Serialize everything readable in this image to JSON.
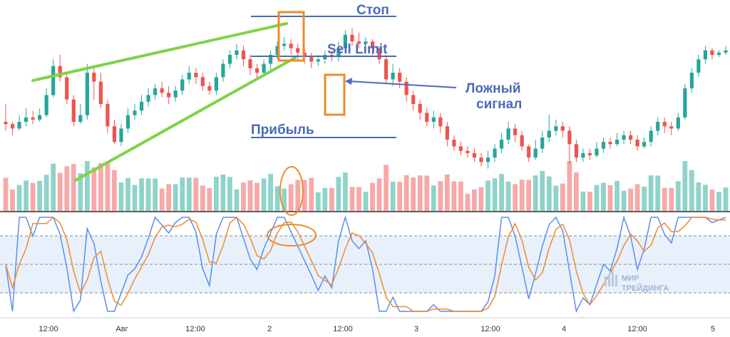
{
  "chart_data": {
    "type": "candlestick",
    "panels": [
      "price",
      "volume",
      "stochastic"
    ],
    "annotations": {
      "stop_label": "Стоп",
      "sell_limit_label": "Sell Limit",
      "false_signal_label_line1": "Ложный",
      "false_signal_label_line2": "сигнал",
      "profit_label": "Прибыль"
    },
    "x_tick_labels": [
      "12:00",
      "Авг",
      "12:00",
      "2",
      "12:00",
      "3",
      "12:00",
      "4",
      "12:00",
      "5"
    ],
    "watermark": {
      "line1": "МИР",
      "line2": "ТРЕЙДИНГА"
    },
    "candles_approx": [
      [
        230,
        229,
        238,
        226
      ],
      [
        229,
        227,
        230,
        224
      ],
      [
        227,
        230,
        233,
        226
      ],
      [
        230,
        232,
        236,
        228
      ],
      [
        232,
        231,
        235,
        229
      ],
      [
        231,
        233,
        236,
        230
      ],
      [
        233,
        242,
        245,
        232
      ],
      [
        242,
        255,
        258,
        241
      ],
      [
        255,
        250,
        260,
        248
      ],
      [
        250,
        240,
        252,
        238
      ],
      [
        240,
        230,
        242,
        228
      ],
      [
        230,
        233,
        238,
        229
      ],
      [
        233,
        252,
        256,
        231
      ],
      [
        252,
        248,
        255,
        240
      ],
      [
        248,
        238,
        252,
        236
      ],
      [
        238,
        228,
        240,
        225
      ],
      [
        228,
        221,
        231,
        220
      ],
      [
        221,
        227,
        229,
        219
      ],
      [
        227,
        233,
        236,
        225
      ],
      [
        233,
        235,
        238,
        231
      ],
      [
        235,
        239,
        242,
        233
      ],
      [
        239,
        242,
        245,
        237
      ],
      [
        242,
        245,
        247,
        240
      ],
      [
        245,
        243,
        248,
        241
      ],
      [
        243,
        241,
        246,
        238
      ],
      [
        241,
        244,
        246,
        239
      ],
      [
        244,
        249,
        251,
        242
      ],
      [
        249,
        252,
        255,
        247
      ],
      [
        252,
        250,
        254,
        247
      ],
      [
        250,
        246,
        252,
        244
      ],
      [
        246,
        244,
        248,
        242
      ],
      [
        244,
        250,
        252,
        242
      ],
      [
        250,
        256,
        258,
        248
      ],
      [
        256,
        260,
        262,
        254
      ],
      [
        260,
        262,
        265,
        258
      ],
      [
        262,
        258,
        264,
        255
      ],
      [
        258,
        254,
        260,
        251
      ],
      [
        254,
        252,
        256,
        249
      ],
      [
        252,
        256,
        258,
        250
      ],
      [
        256,
        260,
        262,
        253
      ],
      [
        260,
        264,
        266,
        258
      ],
      [
        264,
        265,
        268,
        262
      ],
      [
        265,
        263,
        267,
        260
      ],
      [
        263,
        261,
        265,
        257
      ],
      [
        261,
        259,
        263,
        256
      ],
      [
        259,
        257,
        261,
        254
      ],
      [
        257,
        258,
        260,
        255
      ],
      [
        258,
        260,
        262,
        256
      ],
      [
        260,
        259,
        262,
        257
      ],
      [
        259,
        263,
        266,
        257
      ],
      [
        263,
        269,
        271,
        261
      ],
      [
        269,
        266,
        272,
        264
      ],
      [
        266,
        265,
        270,
        263
      ],
      [
        265,
        266,
        268,
        264
      ],
      [
        266,
        263,
        267,
        260
      ],
      [
        263,
        258,
        264,
        256
      ],
      [
        258,
        249,
        260,
        247
      ],
      [
        249,
        252,
        256,
        246
      ],
      [
        252,
        248,
        254,
        245
      ],
      [
        248,
        242,
        250,
        239
      ],
      [
        242,
        238,
        244,
        235
      ],
      [
        238,
        234,
        240,
        231
      ],
      [
        234,
        230,
        236,
        228
      ],
      [
        230,
        232,
        235,
        227
      ],
      [
        232,
        228,
        234,
        225
      ],
      [
        228,
        222,
        230,
        219
      ],
      [
        222,
        219,
        224,
        217
      ],
      [
        219,
        217,
        221,
        215
      ],
      [
        217,
        216,
        219,
        214
      ],
      [
        216,
        214,
        218,
        212
      ],
      [
        214,
        212,
        216,
        210
      ],
      [
        212,
        214,
        217,
        209
      ],
      [
        214,
        218,
        220,
        212
      ],
      [
        218,
        222,
        225,
        216
      ],
      [
        222,
        227,
        230,
        220
      ],
      [
        227,
        224,
        229,
        221
      ],
      [
        224,
        219,
        226,
        217
      ],
      [
        219,
        214,
        220,
        212
      ],
      [
        214,
        218,
        222,
        213
      ],
      [
        218,
        223,
        226,
        216
      ],
      [
        223,
        226,
        233,
        221
      ],
      [
        226,
        228,
        231,
        224
      ],
      [
        228,
        226,
        230,
        223
      ],
      [
        226,
        220,
        228,
        211
      ],
      [
        220,
        214,
        222,
        212
      ],
      [
        214,
        216,
        218,
        212
      ],
      [
        216,
        215,
        218,
        213
      ],
      [
        215,
        218,
        221,
        214
      ],
      [
        218,
        221,
        223,
        216
      ],
      [
        221,
        220,
        223,
        218
      ],
      [
        220,
        222,
        225,
        219
      ],
      [
        222,
        224,
        226,
        220
      ],
      [
        224,
        222,
        226,
        220
      ],
      [
        222,
        219,
        224,
        217
      ],
      [
        219,
        221,
        223,
        218
      ],
      [
        221,
        226,
        228,
        219
      ],
      [
        226,
        230,
        232,
        224
      ],
      [
        230,
        228,
        232,
        225
      ],
      [
        228,
        227,
        230,
        224
      ],
      [
        227,
        232,
        234,
        226
      ],
      [
        232,
        245,
        247,
        231
      ],
      [
        245,
        252,
        254,
        243
      ],
      [
        252,
        258,
        260,
        250
      ],
      [
        258,
        262,
        264,
        256
      ],
      [
        262,
        260,
        263,
        258
      ],
      [
        260,
        261,
        262,
        259
      ],
      [
        261,
        262,
        264,
        260
      ]
    ],
    "volume_note": "relative bar heights",
    "stochastic": {
      "upper_band": 80,
      "lower_band": 20,
      "mid": 50,
      "ylim": [
        0,
        100
      ]
    }
  }
}
